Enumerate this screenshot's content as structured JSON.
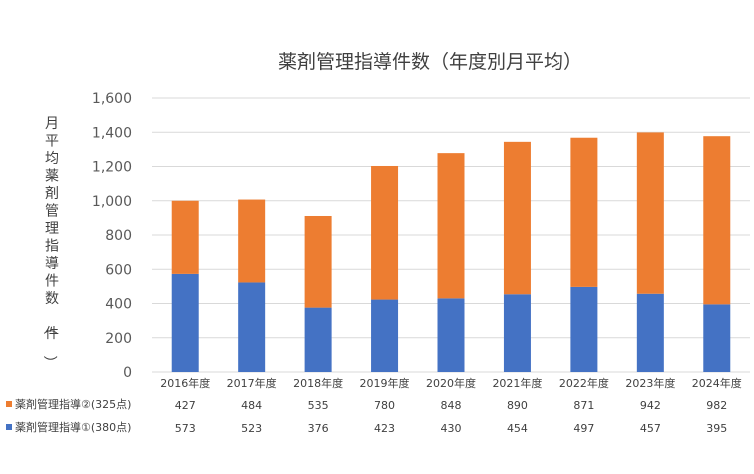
{
  "chart_data": {
    "type": "bar",
    "stacked": true,
    "title": "薬剤管理指導件数（年度別月平均）",
    "ylabel": "月平均薬剤管理指導件数（件）",
    "xlabel": "",
    "ylim": [
      0,
      1600
    ],
    "yticks": [
      0,
      200,
      400,
      600,
      800,
      1000,
      1200,
      1400,
      1600
    ],
    "ytick_labels": [
      "0",
      "200",
      "400",
      "600",
      "800",
      "1,000",
      "1,200",
      "1,400",
      "1,600"
    ],
    "grid": true,
    "categories": [
      "2016年度",
      "2017年度",
      "2018年度",
      "2019年度",
      "2020年度",
      "2021年度",
      "2022年度",
      "2023年度",
      "2024年度"
    ],
    "series": [
      {
        "name": "薬剤管理指導①(380点)",
        "color": "#4472c4",
        "values": [
          573,
          523,
          376,
          423,
          430,
          454,
          497,
          457,
          395
        ]
      },
      {
        "name": "薬剤管理指導②(325点)",
        "color": "#ed7d31",
        "values": [
          427,
          484,
          535,
          780,
          848,
          890,
          871,
          942,
          982
        ]
      }
    ],
    "data_table": true
  }
}
